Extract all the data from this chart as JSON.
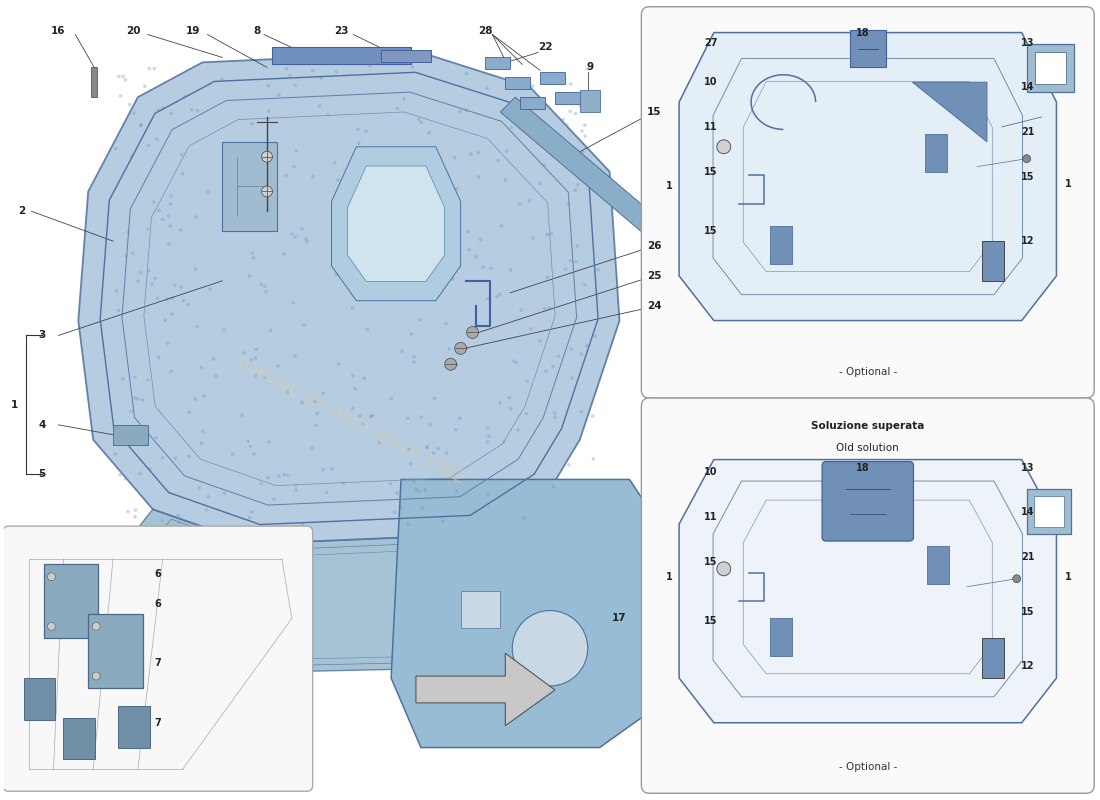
{
  "bg_color": "#ffffff",
  "line_color": "#333333",
  "blue_fill": "#a8c4dc",
  "blue_mid": "#90b0cc",
  "blue_dark": "#6888a8",
  "blue_light": "#c0d8ec",
  "blue_strip": "#8aaec8",
  "panel_blue": "#9ab8cc",
  "box_bg": "#f8f8f8",
  "optional_text": "- Optional -",
  "old_solution_text1": "Soluzione superata",
  "old_solution_text2": "Old solution",
  "watermark1": "passion for parts since 1982"
}
